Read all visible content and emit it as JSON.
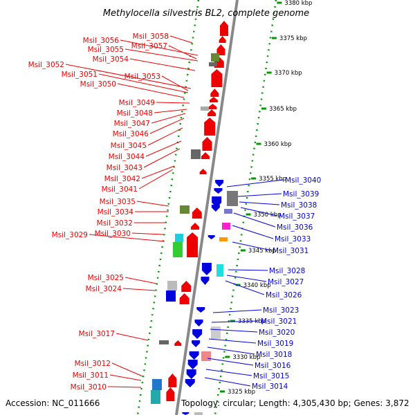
{
  "title": "Methylocella silvestris BL2, complete genome",
  "footer": {
    "accession": "Accession: NC_011666",
    "topology": "Topology: circular; Length: 4,305,430 bp; Genes: 3,872"
  },
  "colors": {
    "forward": "#ee0000",
    "reverse": "#0000dd",
    "tick": "#009900",
    "backbone": "#888888"
  },
  "ticks": [
    {
      "label": "3380 kbp",
      "kbp": 3380
    },
    {
      "label": "3375 kbp",
      "kbp": 3375
    },
    {
      "label": "3370 kbp",
      "kbp": 3370
    },
    {
      "label": "3365 kbp",
      "kbp": 3365
    },
    {
      "label": "3360 kbp",
      "kbp": 3360
    },
    {
      "label": "3355 kbp",
      "kbp": 3355
    },
    {
      "label": "3350 kbp",
      "kbp": 3350
    },
    {
      "label": "3345 kbp",
      "kbp": 3345
    },
    {
      "label": "3340 kbp",
      "kbp": 3340
    },
    {
      "label": "3335 kbp",
      "kbp": 3335
    },
    {
      "label": "3330 kbp",
      "kbp": 3330
    },
    {
      "label": "3325 kbp",
      "kbp": 3325
    }
  ],
  "left_labels": [
    "Msil_3058",
    "Msil_3056",
    "Msil_3057",
    "Msil_3055",
    "Msil_3054",
    "Msil_3052",
    "Msil_3051",
    "Msil_3053",
    "Msil_3050",
    "Msil_3049",
    "Msil_3048",
    "Msil_3047",
    "Msil_3046",
    "Msil_3045",
    "Msil_3044",
    "Msil_3043",
    "Msil_3042",
    "Msil_3041",
    "Msil_3035",
    "Msil_3034",
    "Msil_3032",
    "Msil_3029",
    "Msil_3030",
    "Msil_3025",
    "Msil_3024",
    "Msil_3017",
    "Msil_3012",
    "Msil_3011",
    "Msil_3010"
  ],
  "right_labels": [
    "Msil_3040",
    "Msil_3039",
    "Msil_3038",
    "Msil_3037",
    "Msil_3036",
    "Msil_3033",
    "Msil_3031",
    "Msil_3028",
    "Msil_3027",
    "Msil_3026",
    "Msil_3023",
    "Msil_3021",
    "Msil_3020",
    "Msil_3019",
    "Msil_3018",
    "Msil_3016",
    "Msil_3015",
    "Msil_3014"
  ]
}
